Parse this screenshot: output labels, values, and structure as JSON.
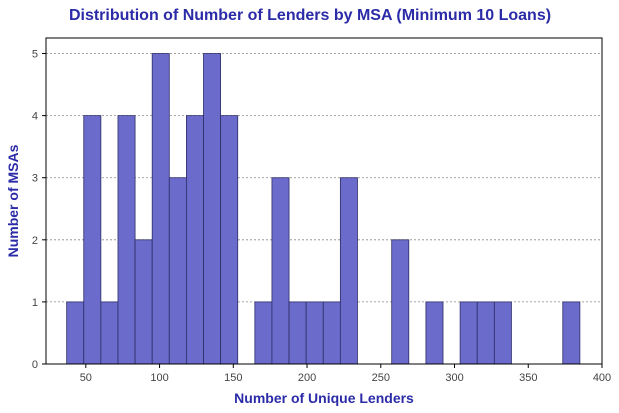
{
  "chart_data": {
    "type": "bar",
    "title": "Distribution of Number of Lenders by MSA (Minimum 10 Loans)",
    "xlabel": "Number of Unique Lenders",
    "ylabel": "Number of MSAs",
    "xlim": [
      23,
      400
    ],
    "ylim": [
      0,
      5.25
    ],
    "xticks": [
      50,
      100,
      150,
      200,
      250,
      300,
      350,
      400
    ],
    "yticks": [
      0,
      1,
      2,
      3,
      4,
      5
    ],
    "grid": "horizontal",
    "bar_color": "#6b6bcc",
    "bin_width": 11.6,
    "bins": [
      {
        "x0": 37.0,
        "count": 1
      },
      {
        "x0": 48.6,
        "count": 4
      },
      {
        "x0": 60.2,
        "count": 1
      },
      {
        "x0": 71.8,
        "count": 4
      },
      {
        "x0": 83.4,
        "count": 2
      },
      {
        "x0": 95.0,
        "count": 5
      },
      {
        "x0": 106.6,
        "count": 3
      },
      {
        "x0": 118.2,
        "count": 4
      },
      {
        "x0": 129.8,
        "count": 5
      },
      {
        "x0": 141.4,
        "count": 4
      },
      {
        "x0": 153.0,
        "count": 0
      },
      {
        "x0": 164.6,
        "count": 1
      },
      {
        "x0": 176.2,
        "count": 3
      },
      {
        "x0": 187.8,
        "count": 1
      },
      {
        "x0": 199.4,
        "count": 1
      },
      {
        "x0": 211.0,
        "count": 1
      },
      {
        "x0": 222.6,
        "count": 3
      },
      {
        "x0": 234.2,
        "count": 0
      },
      {
        "x0": 245.8,
        "count": 0
      },
      {
        "x0": 257.4,
        "count": 2
      },
      {
        "x0": 269.0,
        "count": 0
      },
      {
        "x0": 280.6,
        "count": 1
      },
      {
        "x0": 292.2,
        "count": 0
      },
      {
        "x0": 303.8,
        "count": 1
      },
      {
        "x0": 315.4,
        "count": 1
      },
      {
        "x0": 327.0,
        "count": 1
      },
      {
        "x0": 338.6,
        "count": 0
      },
      {
        "x0": 350.2,
        "count": 0
      },
      {
        "x0": 361.8,
        "count": 0
      },
      {
        "x0": 373.4,
        "count": 1
      }
    ]
  }
}
